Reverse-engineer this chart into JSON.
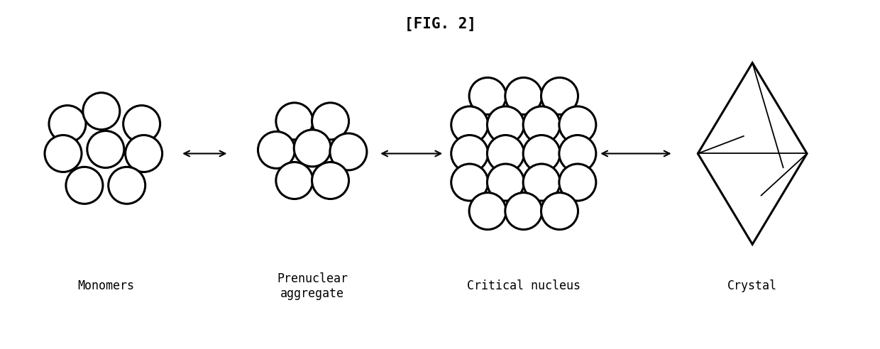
{
  "title": "[FIG. 2]",
  "title_fontsize": 15,
  "background_color": "#ffffff",
  "labels": [
    "Monomers",
    "Prenuclear\naggregate",
    "Critical nucleus",
    "Crystal"
  ],
  "label_fontsize": 12,
  "label_font": "monospace",
  "circle_color": "#ffffff",
  "circle_edge_color": "#000000",
  "circle_linewidth": 2.2,
  "arrow_color": "#000000",
  "arrow_linewidth": 1.5,
  "fig_width": 12.4,
  "fig_height": 4.92,
  "dpi": 100
}
